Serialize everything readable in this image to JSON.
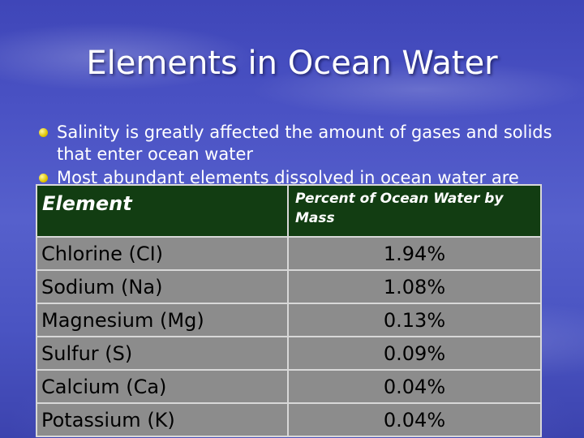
{
  "slide": {
    "title": "Elements in Ocean Water",
    "bullets": [
      "Salinity is greatly affected the amount of gases and solids that enter ocean water",
      "Most abundant elements dissolved in ocean water are"
    ]
  },
  "table": {
    "headers": [
      "Element",
      "Percent of Ocean Water by Mass"
    ],
    "rows": [
      {
        "element": "Chlorine (CI)",
        "percent": "1.94%"
      },
      {
        "element": "Sodium (Na)",
        "percent": "1.08%"
      },
      {
        "element": "Magnesium (Mg)",
        "percent": "0.13%"
      },
      {
        "element": "Sulfur (S)",
        "percent": "0.09%"
      },
      {
        "element": "Calcium (Ca)",
        "percent": "0.04%"
      },
      {
        "element": "Potassium (K)",
        "percent": "0.04%"
      }
    ]
  },
  "colors": {
    "header_bg": "#123d12",
    "cell_bg": "#8c8c8c",
    "bullet": "#e0c400"
  }
}
